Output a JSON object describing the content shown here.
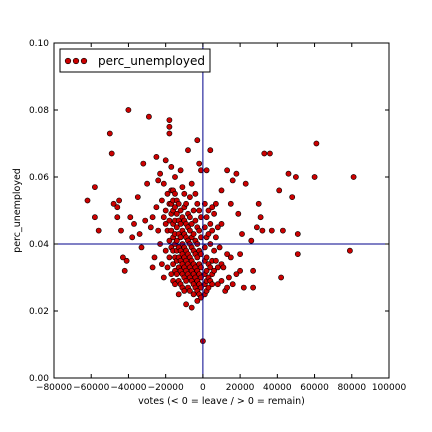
{
  "chart_data": {
    "type": "scatter",
    "xlabel": "votes (< 0 = leave / > 0 = remain)",
    "ylabel": "perc_unemployed",
    "xlim": [
      -80000,
      100000
    ],
    "ylim": [
      0.0,
      0.1
    ],
    "xticks": [
      -80000,
      -60000,
      -40000,
      -20000,
      0,
      20000,
      40000,
      60000,
      80000,
      100000
    ],
    "xtick_labels": [
      "−80000",
      "−60000",
      "−40000",
      "−20000",
      "0",
      "20000",
      "40000",
      "60000",
      "80000",
      "100000"
    ],
    "yticks": [
      0.0,
      0.02,
      0.04,
      0.06,
      0.08,
      0.1
    ],
    "ytick_labels": [
      "0.00",
      "0.02",
      "0.04",
      "0.06",
      "0.08",
      "0.10"
    ],
    "grid": false,
    "legend": {
      "position": "top-left",
      "label": "perc_unemployed"
    },
    "reference_lines": {
      "x": 0,
      "y": 0.04,
      "color": "#00008b"
    },
    "marker_color": "#cc0000",
    "marker_edge": "#000000",
    "series": [
      {
        "name": "perc_unemployed",
        "points": [
          [
            -62000,
            0.053
          ],
          [
            -58000,
            0.057
          ],
          [
            -58000,
            0.048
          ],
          [
            -56000,
            0.044
          ],
          [
            -50000,
            0.073
          ],
          [
            -49000,
            0.067
          ],
          [
            -48000,
            0.052
          ],
          [
            -46000,
            0.051
          ],
          [
            -46000,
            0.048
          ],
          [
            -45000,
            0.053
          ],
          [
            -44000,
            0.044
          ],
          [
            -43000,
            0.036
          ],
          [
            -42000,
            0.032
          ],
          [
            -41000,
            0.035
          ],
          [
            -40000,
            0.08
          ],
          [
            -39000,
            0.048
          ],
          [
            -38000,
            0.042
          ],
          [
            -37000,
            0.046
          ],
          [
            -35000,
            0.054
          ],
          [
            -34000,
            0.043
          ],
          [
            -33000,
            0.039
          ],
          [
            -32000,
            0.064
          ],
          [
            -31000,
            0.047
          ],
          [
            -30000,
            0.058
          ],
          [
            -29000,
            0.078
          ],
          [
            -28000,
            0.045
          ],
          [
            -27000,
            0.048
          ],
          [
            -27000,
            0.033
          ],
          [
            -26000,
            0.036
          ],
          [
            -25000,
            0.066
          ],
          [
            -25000,
            0.051
          ],
          [
            -24000,
            0.059
          ],
          [
            -24000,
            0.044
          ],
          [
            -23000,
            0.061
          ],
          [
            -23000,
            0.04
          ],
          [
            -22000,
            0.053
          ],
          [
            -22000,
            0.034
          ],
          [
            -21000,
            0.058
          ],
          [
            -21000,
            0.048
          ],
          [
            -21000,
            0.03
          ],
          [
            -20000,
            0.065
          ],
          [
            -20000,
            0.05
          ],
          [
            -20000,
            0.046
          ],
          [
            -20000,
            0.038
          ],
          [
            -19000,
            0.055
          ],
          [
            -19000,
            0.044
          ],
          [
            -19000,
            0.033
          ],
          [
            -18000,
            0.077
          ],
          [
            -18000,
            0.075
          ],
          [
            -18000,
            0.073
          ],
          [
            -18000,
            0.052
          ],
          [
            -18000,
            0.047
          ],
          [
            -18000,
            0.041
          ],
          [
            -18000,
            0.036
          ],
          [
            -17000,
            0.063
          ],
          [
            -17000,
            0.056
          ],
          [
            -17000,
            0.052
          ],
          [
            -17000,
            0.049
          ],
          [
            -17000,
            0.044
          ],
          [
            -17000,
            0.039
          ],
          [
            -17000,
            0.031
          ],
          [
            -16000,
            0.056
          ],
          [
            -16000,
            0.053
          ],
          [
            -16000,
            0.05
          ],
          [
            -16000,
            0.046
          ],
          [
            -16000,
            0.042
          ],
          [
            -16000,
            0.038
          ],
          [
            -16000,
            0.034
          ],
          [
            -16000,
            0.029
          ],
          [
            -15000,
            0.06
          ],
          [
            -15000,
            0.055
          ],
          [
            -15000,
            0.051
          ],
          [
            -15000,
            0.047
          ],
          [
            -15000,
            0.043
          ],
          [
            -15000,
            0.04
          ],
          [
            -15000,
            0.036
          ],
          [
            -15000,
            0.032
          ],
          [
            -15000,
            0.028
          ],
          [
            -14000,
            0.053
          ],
          [
            -14000,
            0.049
          ],
          [
            -14000,
            0.045
          ],
          [
            -14000,
            0.041
          ],
          [
            -14000,
            0.038
          ],
          [
            -14000,
            0.035
          ],
          [
            -14000,
            0.031
          ],
          [
            -13000,
            0.052
          ],
          [
            -13000,
            0.047
          ],
          [
            -13000,
            0.043
          ],
          [
            -13000,
            0.039
          ],
          [
            -13000,
            0.036
          ],
          [
            -13000,
            0.033
          ],
          [
            -13000,
            0.029
          ],
          [
            -13000,
            0.025
          ],
          [
            -12000,
            0.062
          ],
          [
            -12000,
            0.05
          ],
          [
            -12000,
            0.046
          ],
          [
            -12000,
            0.042
          ],
          [
            -12000,
            0.038
          ],
          [
            -12000,
            0.035
          ],
          [
            -12000,
            0.032
          ],
          [
            -12000,
            0.028
          ],
          [
            -11000,
            0.057
          ],
          [
            -11000,
            0.048
          ],
          [
            -11000,
            0.044
          ],
          [
            -11000,
            0.04
          ],
          [
            -11000,
            0.037
          ],
          [
            -11000,
            0.034
          ],
          [
            -11000,
            0.031
          ],
          [
            -11000,
            0.027
          ],
          [
            -10000,
            0.055
          ],
          [
            -10000,
            0.051
          ],
          [
            -10000,
            0.047
          ],
          [
            -10000,
            0.043
          ],
          [
            -10000,
            0.039
          ],
          [
            -10000,
            0.036
          ],
          [
            -10000,
            0.033
          ],
          [
            -10000,
            0.03
          ],
          [
            -10000,
            0.026
          ],
          [
            -9000,
            0.052
          ],
          [
            -9000,
            0.046
          ],
          [
            -9000,
            0.042
          ],
          [
            -9000,
            0.038
          ],
          [
            -9000,
            0.035
          ],
          [
            -9000,
            0.032
          ],
          [
            -9000,
            0.029
          ],
          [
            -9000,
            0.022
          ],
          [
            -8000,
            0.068
          ],
          [
            -8000,
            0.049
          ],
          [
            -8000,
            0.045
          ],
          [
            -8000,
            0.041
          ],
          [
            -8000,
            0.037
          ],
          [
            -8000,
            0.034
          ],
          [
            -8000,
            0.031
          ],
          [
            -8000,
            0.027
          ],
          [
            -7000,
            0.054
          ],
          [
            -7000,
            0.048
          ],
          [
            -7000,
            0.044
          ],
          [
            -7000,
            0.04
          ],
          [
            -7000,
            0.036
          ],
          [
            -7000,
            0.033
          ],
          [
            -7000,
            0.03
          ],
          [
            -7000,
            0.026
          ],
          [
            -6000,
            0.058
          ],
          [
            -6000,
            0.046
          ],
          [
            -6000,
            0.042
          ],
          [
            -6000,
            0.039
          ],
          [
            -6000,
            0.035
          ],
          [
            -6000,
            0.032
          ],
          [
            -6000,
            0.029
          ],
          [
            -6000,
            0.021
          ],
          [
            -5000,
            0.05
          ],
          [
            -5000,
            0.043
          ],
          [
            -5000,
            0.038
          ],
          [
            -5000,
            0.034
          ],
          [
            -5000,
            0.031
          ],
          [
            -5000,
            0.028
          ],
          [
            -5000,
            0.025
          ],
          [
            -4000,
            0.055
          ],
          [
            -4000,
            0.047
          ],
          [
            -4000,
            0.041
          ],
          [
            -4000,
            0.037
          ],
          [
            -4000,
            0.033
          ],
          [
            -4000,
            0.03
          ],
          [
            -4000,
            0.027
          ],
          [
            -3000,
            0.071
          ],
          [
            -3000,
            0.052
          ],
          [
            -3000,
            0.045
          ],
          [
            -3000,
            0.04
          ],
          [
            -3000,
            0.036
          ],
          [
            -3000,
            0.032
          ],
          [
            -3000,
            0.029
          ],
          [
            -3000,
            0.026
          ],
          [
            -3000,
            0.023
          ],
          [
            -2000,
            0.064
          ],
          [
            -2000,
            0.05
          ],
          [
            -2000,
            0.044
          ],
          [
            -2000,
            0.038
          ],
          [
            -2000,
            0.034
          ],
          [
            -2000,
            0.031
          ],
          [
            -2000,
            0.028
          ],
          [
            -2000,
            0.025
          ],
          [
            -1000,
            0.062
          ],
          [
            -1000,
            0.048
          ],
          [
            -1000,
            0.042
          ],
          [
            -1000,
            0.037
          ],
          [
            -1000,
            0.033
          ],
          [
            -1000,
            0.03
          ],
          [
            -1000,
            0.027
          ],
          [
            -1000,
            0.024
          ],
          [
            0,
            0.011
          ],
          [
            1000,
            0.052
          ],
          [
            1000,
            0.045
          ],
          [
            1000,
            0.039
          ],
          [
            1000,
            0.035
          ],
          [
            1000,
            0.031
          ],
          [
            1000,
            0.028
          ],
          [
            1000,
            0.025
          ],
          [
            2000,
            0.062
          ],
          [
            2000,
            0.048
          ],
          [
            2000,
            0.042
          ],
          [
            2000,
            0.036
          ],
          [
            2000,
            0.032
          ],
          [
            2000,
            0.029
          ],
          [
            2000,
            0.026
          ],
          [
            3000,
            0.05
          ],
          [
            3000,
            0.043
          ],
          [
            3000,
            0.034
          ],
          [
            3000,
            0.03
          ],
          [
            3000,
            0.027
          ],
          [
            4000,
            0.068
          ],
          [
            4000,
            0.046
          ],
          [
            4000,
            0.04
          ],
          [
            4000,
            0.033
          ],
          [
            4000,
            0.029
          ],
          [
            5000,
            0.051
          ],
          [
            5000,
            0.044
          ],
          [
            5000,
            0.035
          ],
          [
            5000,
            0.031
          ],
          [
            5000,
            0.028
          ],
          [
            6000,
            0.049
          ],
          [
            6000,
            0.038
          ],
          [
            6000,
            0.032
          ],
          [
            7000,
            0.052
          ],
          [
            7000,
            0.042
          ],
          [
            7000,
            0.035
          ],
          [
            8000,
            0.045
          ],
          [
            8000,
            0.033
          ],
          [
            8000,
            0.028
          ],
          [
            9000,
            0.039
          ],
          [
            10000,
            0.056
          ],
          [
            10000,
            0.046
          ],
          [
            10000,
            0.034
          ],
          [
            10000,
            0.029
          ],
          [
            11000,
            0.033
          ],
          [
            12000,
            0.026
          ],
          [
            13000,
            0.062
          ],
          [
            13000,
            0.037
          ],
          [
            13000,
            0.027
          ],
          [
            14000,
            0.03
          ],
          [
            15000,
            0.052
          ],
          [
            15000,
            0.036
          ],
          [
            16000,
            0.059
          ],
          [
            16000,
            0.028
          ],
          [
            18000,
            0.061
          ],
          [
            18000,
            0.031
          ],
          [
            19000,
            0.049
          ],
          [
            20000,
            0.037
          ],
          [
            20000,
            0.032
          ],
          [
            21000,
            0.043
          ],
          [
            22000,
            0.027
          ],
          [
            23000,
            0.058
          ],
          [
            26000,
            0.041
          ],
          [
            27000,
            0.032
          ],
          [
            27000,
            0.027
          ],
          [
            29000,
            0.045
          ],
          [
            30000,
            0.052
          ],
          [
            31000,
            0.048
          ],
          [
            32000,
            0.044
          ],
          [
            33000,
            0.067
          ],
          [
            36000,
            0.067
          ],
          [
            37000,
            0.044
          ],
          [
            41000,
            0.056
          ],
          [
            42000,
            0.03
          ],
          [
            43000,
            0.044
          ],
          [
            46000,
            0.061
          ],
          [
            48000,
            0.054
          ],
          [
            50000,
            0.06
          ],
          [
            51000,
            0.043
          ],
          [
            51000,
            0.037
          ],
          [
            60000,
            0.06
          ],
          [
            61000,
            0.07
          ],
          [
            79000,
            0.038
          ],
          [
            81000,
            0.06
          ]
        ]
      }
    ]
  }
}
